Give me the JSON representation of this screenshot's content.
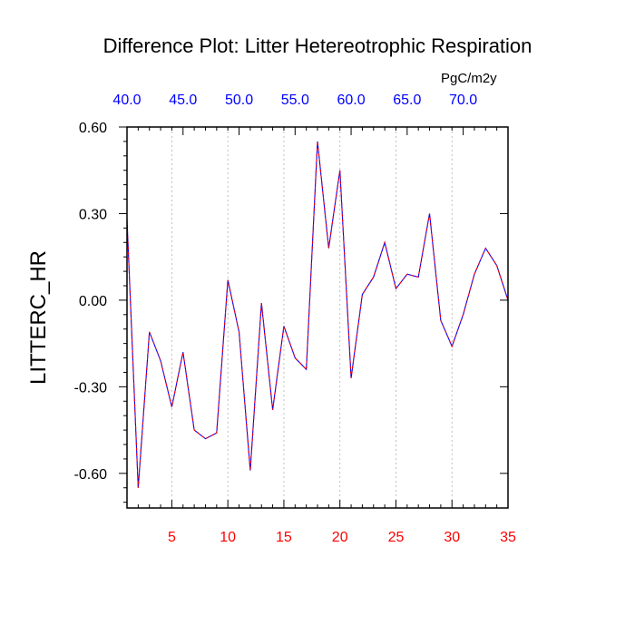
{
  "chart_data": {
    "type": "line",
    "title": "Difference Plot: Litter Hetereotrophic Respiration",
    "units": "PgC/m2y",
    "ylabel": "LITTERC_HR",
    "xlabel": "",
    "xlim": [
      1,
      35
    ],
    "ylim": [
      -0.72,
      0.6
    ],
    "x_ticks": [
      5,
      10,
      15,
      20,
      25,
      30,
      35
    ],
    "x_tick_labels": [
      "5",
      "10",
      "15",
      "20",
      "25",
      "30",
      "35"
    ],
    "y_ticks": [
      0.6,
      0.3,
      0.0,
      -0.3,
      -0.6
    ],
    "y_tick_labels": [
      "0.60",
      "0.30",
      "0.00",
      "-0.30",
      "-0.60"
    ],
    "top_ticks": [
      1,
      6,
      11,
      16,
      21,
      26,
      31
    ],
    "top_tick_labels": [
      "40.0",
      "45.0",
      "50.0",
      "55.0",
      "60.0",
      "65.0",
      "70.0"
    ],
    "grid": "vertical dashed",
    "colors": {
      "bottom_ticks": "#ff0000",
      "top_ticks": "#0000ff",
      "line_main": "#0000ff",
      "line_dash": "#ff0000"
    },
    "series": [
      {
        "x": [
          1,
          2,
          3,
          4,
          5,
          6,
          7,
          8,
          9,
          10,
          11,
          12,
          13,
          14,
          15,
          16,
          17,
          18,
          19,
          20,
          21,
          22,
          23,
          24,
          25,
          26,
          27,
          28,
          29,
          30,
          31,
          32,
          33,
          34,
          35
        ],
        "values": [
          0.28,
          -0.65,
          -0.11,
          -0.21,
          -0.37,
          -0.18,
          -0.45,
          -0.48,
          -0.46,
          0.07,
          -0.11,
          -0.59,
          -0.01,
          -0.38,
          -0.09,
          -0.2,
          -0.24,
          0.55,
          0.18,
          0.45,
          -0.27,
          0.02,
          0.08,
          0.2,
          0.04,
          0.09,
          0.08,
          0.3,
          -0.07,
          -0.16,
          -0.05,
          0.09,
          0.18,
          0.12,
          0.0
        ]
      }
    ]
  }
}
